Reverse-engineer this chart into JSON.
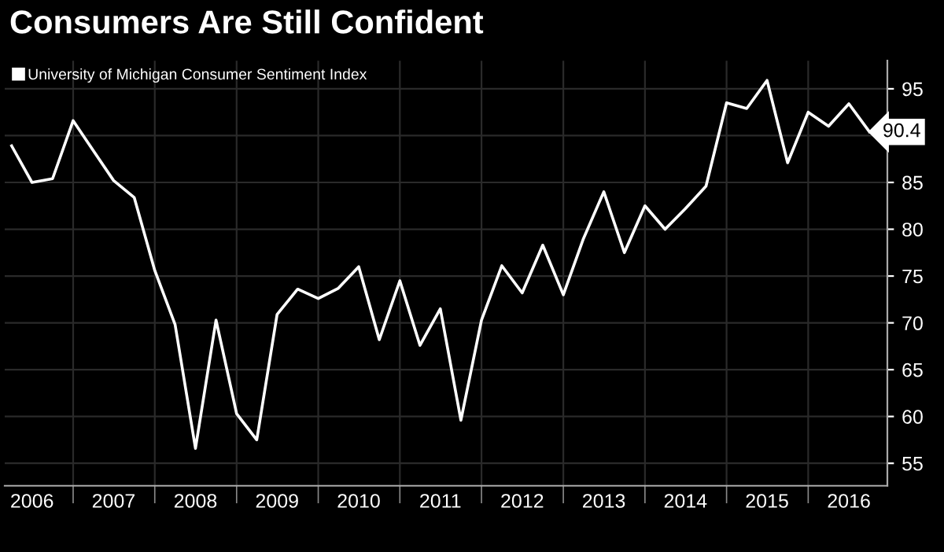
{
  "chart_data": {
    "type": "line",
    "title": "Consumers Are Still Confident",
    "x": [
      "2006-04-01",
      "2006-07-01",
      "2006-10-01",
      "2007-01-01",
      "2007-04-01",
      "2007-07-01",
      "2007-10-01",
      "2008-01-01",
      "2008-04-01",
      "2008-07-01",
      "2008-10-01",
      "2009-01-01",
      "2009-04-01",
      "2009-07-01",
      "2009-10-01",
      "2010-01-01",
      "2010-04-01",
      "2010-07-01",
      "2010-10-01",
      "2011-01-01",
      "2011-04-01",
      "2011-07-01",
      "2011-10-01",
      "2012-01-01",
      "2012-04-01",
      "2012-07-01",
      "2012-10-01",
      "2013-01-01",
      "2013-04-01",
      "2013-07-01",
      "2013-10-01",
      "2014-01-01",
      "2014-04-01",
      "2014-07-01",
      "2014-10-01",
      "2015-01-01",
      "2015-04-01",
      "2015-07-01",
      "2015-10-01",
      "2016-01-01",
      "2016-04-01",
      "2016-07-01",
      "2016-10-01"
    ],
    "series": [
      {
        "name": "University of Michigan Consumer Sentiment Index",
        "color": "#ffffff",
        "values": [
          88.9,
          85.0,
          85.4,
          91.6,
          88.4,
          85.2,
          83.4,
          75.6,
          69.8,
          56.6,
          70.3,
          60.3,
          57.5,
          70.9,
          73.6,
          72.6,
          73.7,
          76.0,
          68.2,
          74.5,
          67.6,
          71.5,
          59.6,
          70.3,
          76.1,
          73.2,
          78.3,
          73.0,
          79.0,
          84.0,
          77.5,
          82.5,
          80.0,
          82.2,
          84.6,
          93.5,
          92.9,
          95.9,
          87.1,
          92.5,
          91.0,
          93.4,
          90.4
        ],
        "value_labels": [
          null,
          null,
          null,
          null,
          null,
          null,
          null,
          null,
          null,
          null,
          null,
          null,
          null,
          null,
          null,
          null,
          null,
          null,
          null,
          null,
          null,
          null,
          null,
          null,
          null,
          null,
          null,
          null,
          null,
          null,
          null,
          null,
          null,
          null,
          null,
          null,
          null,
          null,
          null,
          null,
          null,
          null,
          "90.4"
        ]
      }
    ],
    "xlim": [
      "2006-03-01",
      "2016-12-20"
    ],
    "xticks": [
      {
        "value": "2006-07-01",
        "label": "2006"
      },
      {
        "value": "2007-01-01",
        "label": null
      },
      {
        "value": "2007-07-01",
        "label": "2007"
      },
      {
        "value": "2008-01-01",
        "label": null
      },
      {
        "value": "2008-07-01",
        "label": "2008"
      },
      {
        "value": "2009-01-01",
        "label": null
      },
      {
        "value": "2009-07-01",
        "label": "2009"
      },
      {
        "value": "2010-01-01",
        "label": null
      },
      {
        "value": "2010-07-01",
        "label": "2010"
      },
      {
        "value": "2011-01-01",
        "label": null
      },
      {
        "value": "2011-07-01",
        "label": "2011"
      },
      {
        "value": "2012-01-01",
        "label": null
      },
      {
        "value": "2012-07-01",
        "label": "2012"
      },
      {
        "value": "2013-01-01",
        "label": null
      },
      {
        "value": "2013-07-01",
        "label": "2013"
      },
      {
        "value": "2014-01-01",
        "label": null
      },
      {
        "value": "2014-07-01",
        "label": "2014"
      },
      {
        "value": "2015-01-01",
        "label": null
      },
      {
        "value": "2015-07-01",
        "label": "2015"
      },
      {
        "value": "2016-01-01",
        "label": null
      },
      {
        "value": "2016-07-01",
        "label": "2016"
      }
    ],
    "ylim": [
      52.6,
      98
    ],
    "yticks": [
      55,
      60,
      65,
      70,
      75,
      80,
      85,
      {
        "value": 90,
        "label": null
      },
      95
    ],
    "grid": true,
    "legend": "top left",
    "marker": "none",
    "line_style": "solid"
  }
}
